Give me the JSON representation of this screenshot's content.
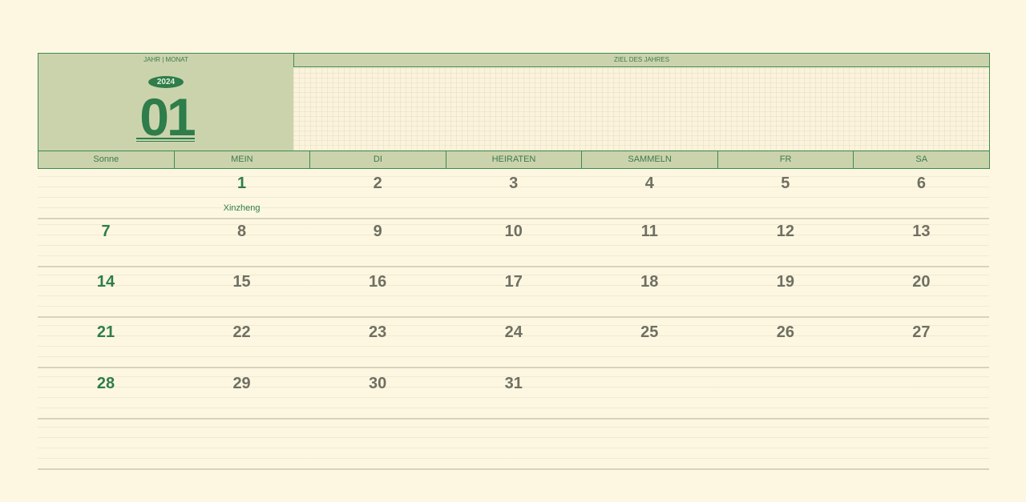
{
  "header": {
    "year_month_label": "JAHR | MONAT",
    "goal_label": "ZIEL DES JAHRES",
    "year": "2024",
    "month": "01"
  },
  "weekdays": [
    "Sonne",
    "MEIN",
    "DI",
    "HEIRATEN",
    "SAMMELN",
    "FR",
    "SA"
  ],
  "weeks": [
    [
      "",
      "1",
      "2",
      "3",
      "4",
      "5",
      "6"
    ],
    [
      "7",
      "8",
      "9",
      "10",
      "11",
      "12",
      "13"
    ],
    [
      "14",
      "15",
      "16",
      "17",
      "18",
      "19",
      "20"
    ],
    [
      "21",
      "22",
      "23",
      "24",
      "25",
      "26",
      "27"
    ],
    [
      "28",
      "29",
      "30",
      "31",
      "",
      "",
      ""
    ],
    [
      "",
      "",
      "",
      "",
      "",
      "",
      ""
    ]
  ],
  "notes": {
    "day1": "Xinzheng"
  },
  "colors": {
    "background": "#fdf7e1",
    "header": "#cbd3ad",
    "accent": "#2e7d4a",
    "day_number": "#6f6f63"
  }
}
